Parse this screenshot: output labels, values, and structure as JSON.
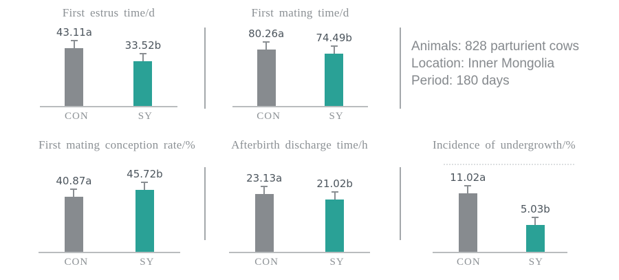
{
  "info_panel": {
    "lines": [
      "Animals: 828 parturient cows",
      "Location: Inner Mongolia",
      "Period: 180 days"
    ]
  },
  "colors": {
    "con_bar": "#878b8f",
    "sy_bar": "#2aa196",
    "title_text": "#8b9094",
    "value_text": "#4b545c",
    "baseline": "#b9bcbe",
    "divider": "#a3a7aa",
    "info_text": "#85898d",
    "whisker": "#8a8e92"
  },
  "chart_data": [
    {
      "type": "bar",
      "title": "First estrus time/d",
      "categories": [
        "CON",
        "SY"
      ],
      "values": [
        43.11,
        33.52
      ],
      "data_labels": [
        "43.11a",
        "33.52b"
      ],
      "error_bars": true,
      "legend_position": "none"
    },
    {
      "type": "bar",
      "title": "First mating time/d",
      "categories": [
        "CON",
        "SY"
      ],
      "values": [
        80.26,
        74.49
      ],
      "data_labels": [
        "80.26a",
        "74.49b"
      ],
      "error_bars": true,
      "legend_position": "none"
    },
    {
      "type": "bar",
      "title": "First mating conception rate/%",
      "categories": [
        "CON",
        "SY"
      ],
      "values": [
        40.87,
        45.72
      ],
      "data_labels": [
        "40.87a",
        "45.72b"
      ],
      "error_bars": true,
      "legend_position": "none"
    },
    {
      "type": "bar",
      "title": "Afterbirth discharge time/h",
      "categories": [
        "CON",
        "SY"
      ],
      "values": [
        23.13,
        21.02
      ],
      "data_labels": [
        "23.13a",
        "21.02b"
      ],
      "error_bars": true,
      "legend_position": "none"
    },
    {
      "type": "bar",
      "title": "Incidence of undergrowth/%",
      "categories": [
        "CON",
        "SY"
      ],
      "values": [
        11.02,
        5.03
      ],
      "data_labels": [
        "11.02a",
        "5.03b"
      ],
      "error_bars": true,
      "legend_position": "none"
    }
  ]
}
